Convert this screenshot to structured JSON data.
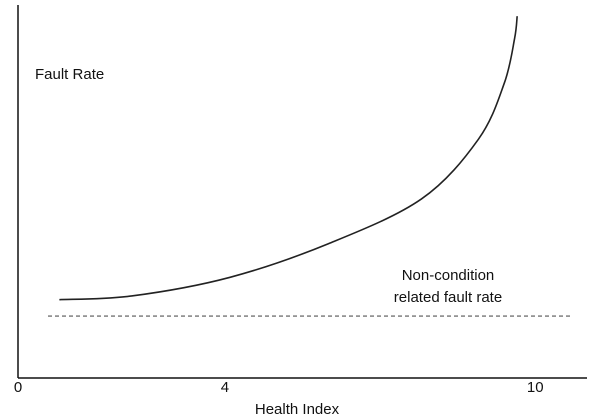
{
  "chart_data": {
    "type": "line",
    "x_label": "Health Index",
    "y_label": "Fault Rate",
    "xlim": [
      0,
      11
    ],
    "ylim": [
      0,
      10
    ],
    "xticks": [
      0,
      4,
      10
    ],
    "grid": false,
    "series": [
      {
        "color": "#222222",
        "x": [
          0.8,
          2.2,
          4.1,
          6.0,
          7.8,
          8.9,
          9.4,
          9.6,
          9.65
        ],
        "values": [
          2.1,
          2.2,
          2.7,
          3.6,
          4.8,
          6.4,
          7.9,
          9.1,
          9.7
        ]
      }
    ],
    "reference_line": {
      "value": 1.66,
      "label": [
        "Non-condition",
        "related fault rate"
      ],
      "color": "#555555"
    }
  }
}
